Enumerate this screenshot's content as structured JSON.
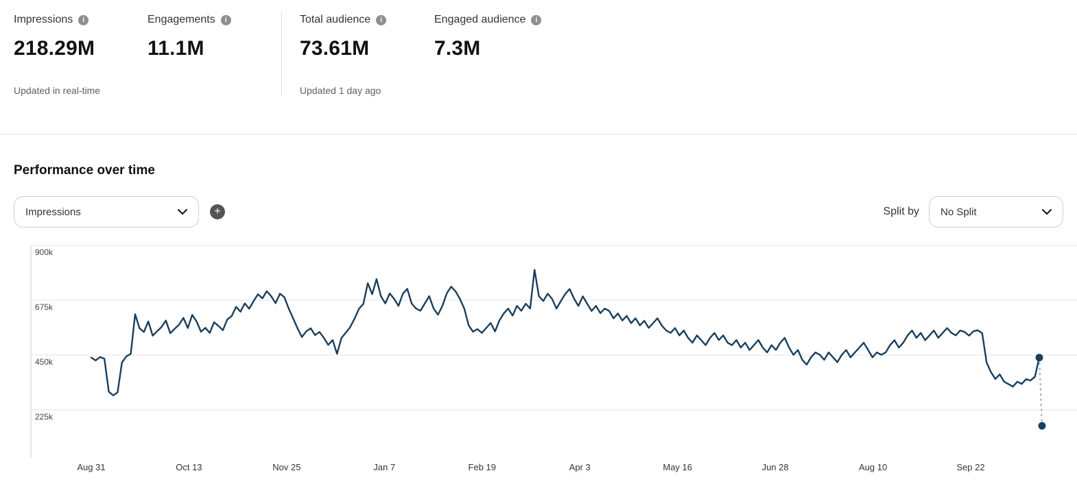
{
  "icons": {
    "info": "i",
    "plus": "+"
  },
  "metrics": {
    "groups": [
      {
        "items": [
          {
            "label": "Impressions",
            "value": "218.29M"
          },
          {
            "label": "Engagements",
            "value": "11.1M"
          }
        ],
        "updated": "Updated in real-time"
      },
      {
        "items": [
          {
            "label": "Total audience",
            "value": "73.61M"
          },
          {
            "label": "Engaged audience",
            "value": "7.3M"
          }
        ],
        "updated": "Updated 1 day ago"
      }
    ]
  },
  "performance": {
    "title": "Performance over time",
    "metric_dropdown": {
      "value": "Impressions"
    },
    "split_by_label": "Split by",
    "split_dropdown": {
      "value": "No Split"
    }
  },
  "chart_data": {
    "type": "line",
    "title": "Performance over time",
    "series_name": "Impressions",
    "values_unit": "thousands",
    "grid": "horizontal",
    "legend": "none",
    "line_color": "#1a3e5c",
    "dashed_connector_color": "#9aa4ad",
    "ylim_k": [
      0,
      940
    ],
    "y_ticks_k": [
      900,
      675,
      450,
      225
    ],
    "y_tick_labels": [
      "900k",
      "675k",
      "450k",
      "225k"
    ],
    "x_tick_labels": [
      "Aug 31",
      "Oct 13",
      "Nov 25",
      "Jan 7",
      "Feb 19",
      "Apr 3",
      "May 16",
      "Jun 28",
      "Aug 10",
      "Sep 22"
    ],
    "endpoint": {
      "upper_k": 440,
      "lower_k": 160,
      "style": "dashed-connector"
    },
    "values_k": [
      440,
      428,
      442,
      435,
      300,
      285,
      297,
      420,
      445,
      455,
      618,
      560,
      545,
      588,
      530,
      548,
      565,
      592,
      540,
      558,
      575,
      603,
      561,
      615,
      588,
      546,
      562,
      541,
      585,
      570,
      552,
      596,
      610,
      648,
      628,
      662,
      640,
      672,
      700,
      683,
      712,
      692,
      663,
      702,
      688,
      641,
      601,
      560,
      524,
      548,
      560,
      532,
      545,
      521,
      492,
      512,
      455,
      520,
      542,
      565,
      600,
      640,
      660,
      745,
      700,
      762,
      692,
      662,
      703,
      681,
      652,
      702,
      722,
      662,
      641,
      632,
      662,
      692,
      641,
      616,
      652,
      703,
      731,
      712,
      681,
      641,
      572,
      546,
      557,
      541,
      561,
      582,
      547,
      592,
      621,
      641,
      612,
      652,
      632,
      661,
      641,
      800,
      692,
      672,
      702,
      681,
      641,
      672,
      701,
      721,
      682,
      652,
      691,
      661,
      631,
      652,
      622,
      641,
      631,
      601,
      621,
      592,
      611,
      581,
      601,
      572,
      591,
      562,
      581,
      601,
      571,
      551,
      541,
      561,
      531,
      551,
      521,
      501,
      531,
      511,
      491,
      521,
      541,
      512,
      531,
      501,
      491,
      512,
      481,
      501,
      471,
      491,
      512,
      481,
      461,
      491,
      471,
      501,
      521,
      481,
      451,
      471,
      431,
      411,
      441,
      461,
      451,
      431,
      461,
      441,
      421,
      451,
      471,
      441,
      461,
      481,
      501,
      471,
      441,
      461,
      451,
      461,
      491,
      511,
      481,
      501,
      531,
      551,
      521,
      541,
      511,
      531,
      551,
      521,
      541,
      561,
      541,
      531,
      551,
      545,
      530,
      548,
      552,
      540,
      420,
      380,
      352,
      371,
      341,
      331,
      321,
      341,
      332,
      351,
      346,
      361,
      440
    ]
  }
}
